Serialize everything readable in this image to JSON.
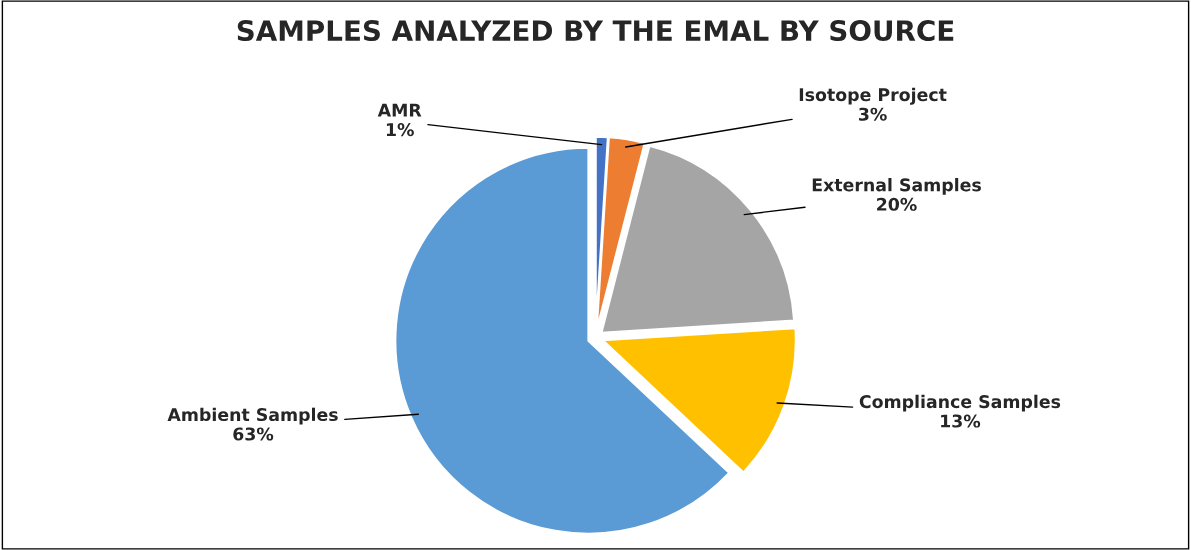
{
  "chart_data": {
    "type": "pie",
    "title": "SAMPLES ANALYZED BY THE EMAL BY SOURCE",
    "categories": [
      "AMR",
      "Isotope Project",
      "External Samples",
      "Compliance Samples",
      "Ambient Samples"
    ],
    "values": [
      1,
      3,
      20,
      13,
      63
    ],
    "value_labels": [
      "1%",
      "3%",
      "20%",
      "13%",
      "63%"
    ],
    "colors": [
      "#4472c4",
      "#ed7d31",
      "#a5a5a5",
      "#ffc000",
      "#5b9bd5"
    ],
    "legend": false
  }
}
